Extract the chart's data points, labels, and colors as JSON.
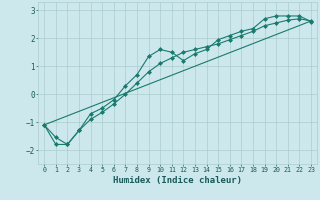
{
  "xlabel": "Humidex (Indice chaleur)",
  "bg_color": "#cce8ec",
  "grid_color": "#aacccc",
  "line_color": "#1a7a6e",
  "xlim": [
    -0.5,
    23.5
  ],
  "ylim": [
    -2.5,
    3.3
  ],
  "xticks": [
    0,
    1,
    2,
    3,
    4,
    5,
    6,
    7,
    8,
    9,
    10,
    11,
    12,
    13,
    14,
    15,
    16,
    17,
    18,
    19,
    20,
    21,
    22,
    23
  ],
  "yticks": [
    -2,
    -1,
    0,
    1,
    2,
    3
  ],
  "curve1_x": [
    0,
    1,
    2,
    3,
    4,
    5,
    6,
    7,
    8,
    9,
    10,
    11,
    12,
    13,
    14,
    15,
    16,
    17,
    18,
    19,
    20,
    21,
    22,
    23
  ],
  "curve1_y": [
    -1.1,
    -1.8,
    -1.8,
    -1.3,
    -0.7,
    -0.5,
    -0.2,
    0.3,
    0.7,
    1.35,
    1.6,
    1.5,
    1.2,
    1.45,
    1.6,
    1.95,
    2.1,
    2.25,
    2.35,
    2.7,
    2.8,
    2.8,
    2.8,
    2.6
  ],
  "curve2_x": [
    0,
    1,
    2,
    3,
    4,
    5,
    6,
    7,
    8,
    9,
    10,
    11,
    12,
    13,
    14,
    15,
    16,
    17,
    18,
    19,
    20,
    21,
    22,
    23
  ],
  "curve2_y": [
    -1.1,
    -1.55,
    -1.8,
    -1.3,
    -0.9,
    -0.65,
    -0.35,
    0.0,
    0.4,
    0.8,
    1.1,
    1.3,
    1.5,
    1.6,
    1.7,
    1.8,
    1.95,
    2.1,
    2.25,
    2.45,
    2.55,
    2.65,
    2.7,
    2.62
  ],
  "curve3_x": [
    0,
    23
  ],
  "curve3_y": [
    -1.1,
    2.62
  ]
}
